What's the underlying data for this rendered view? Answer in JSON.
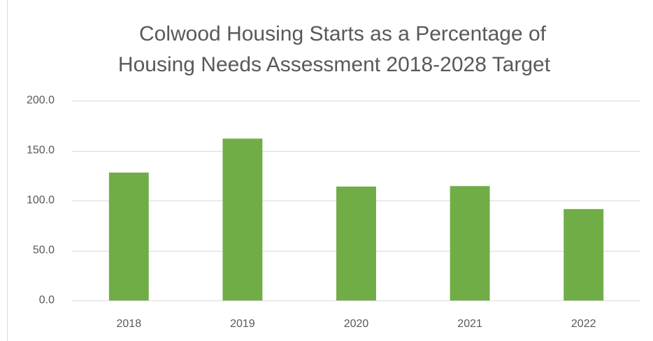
{
  "chart_data": {
    "type": "bar",
    "title": [
      "Colwood Housing Starts as a Percentage of",
      "Housing Needs Assessment 2018-2028 Target"
    ],
    "categories": [
      "2018",
      "2019",
      "2020",
      "2021",
      "2022"
    ],
    "values": [
      128.0,
      162.0,
      114.0,
      114.5,
      91.5
    ],
    "color": "#70ad47",
    "ylim": [
      0,
      200
    ],
    "yticks": [
      {
        "value": 0,
        "label": "0.0"
      },
      {
        "value": 50,
        "label": "50.0"
      },
      {
        "value": 100,
        "label": "100.0"
      },
      {
        "value": 150,
        "label": "150.0"
      },
      {
        "value": 200,
        "label": "200.0"
      }
    ],
    "grid": true
  }
}
